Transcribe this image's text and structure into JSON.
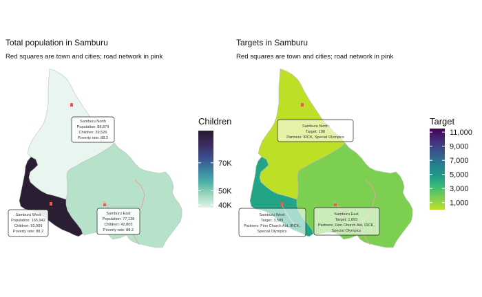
{
  "panels": [
    {
      "title": "Total population in Samburu",
      "subtitle": "Red squares are town and cities; road network in pink",
      "regions": {
        "north": {
          "color": "#e9f6ef"
        },
        "east": {
          "color": "#b5e2c9"
        },
        "west": {
          "color": "#2a1e33"
        }
      },
      "labels": {
        "north": [
          "Samburu North",
          "Population: 88,879",
          "Children: 39,526",
          "Poverty rate: 88.2"
        ],
        "west": [
          "Samburu West",
          "Population: 165,942",
          "Children: 92,909",
          "Poverty rate: 88.2"
        ],
        "east": [
          "Samburu East",
          "Population: 77,138",
          "Children: 42,803",
          "Poverty rate: 88.2"
        ]
      },
      "legend": {
        "title": "Children",
        "ticks": [
          "70K",
          "50K",
          "40K"
        ],
        "tick_values": [
          70000,
          50000,
          40000
        ],
        "range": [
          38000,
          93000
        ],
        "colors": [
          "#dff3e8",
          "#9fd6bd",
          "#4bb0a8",
          "#3a7f9e",
          "#3b4b8a",
          "#3a2a5c",
          "#261a2e"
        ]
      }
    },
    {
      "title": "Targets in Samburu",
      "subtitle": "Red squares are town and cities; road network in pink",
      "regions": {
        "north": {
          "color": "#bddf26"
        },
        "east": {
          "color": "#7ccf50"
        },
        "west": {
          "color": "#21a585"
        }
      },
      "labels": {
        "north": [
          "Samburu North",
          "Target: 198",
          "Partners: IRCK, Special Olympics"
        ],
        "west": [
          "Samburu West",
          "Target: 3,589",
          "Partners: Finn Church Aid, IRCK,",
          "Special Olympics"
        ],
        "east": [
          "Samburu East",
          "Target: 1,893",
          "Partners: Finn Church Aid, IRCK,",
          "Special Olympics"
        ]
      },
      "legend": {
        "title": "Target",
        "ticks": [
          "11,000",
          "9,000",
          "7,000",
          "5,000",
          "3,000",
          "1,000"
        ],
        "tick_values": [
          11000,
          9000,
          7000,
          5000,
          3000,
          1000
        ],
        "range": [
          0,
          11500
        ],
        "colors": [
          "#bddf26",
          "#7ccf50",
          "#3bbb75",
          "#1f978b",
          "#297b8e",
          "#39568c",
          "#472c7a",
          "#440154"
        ]
      }
    }
  ],
  "colors": {
    "town_marker": "#e8595b",
    "road": "#f2a0a0",
    "border": "#bdbdbd"
  }
}
